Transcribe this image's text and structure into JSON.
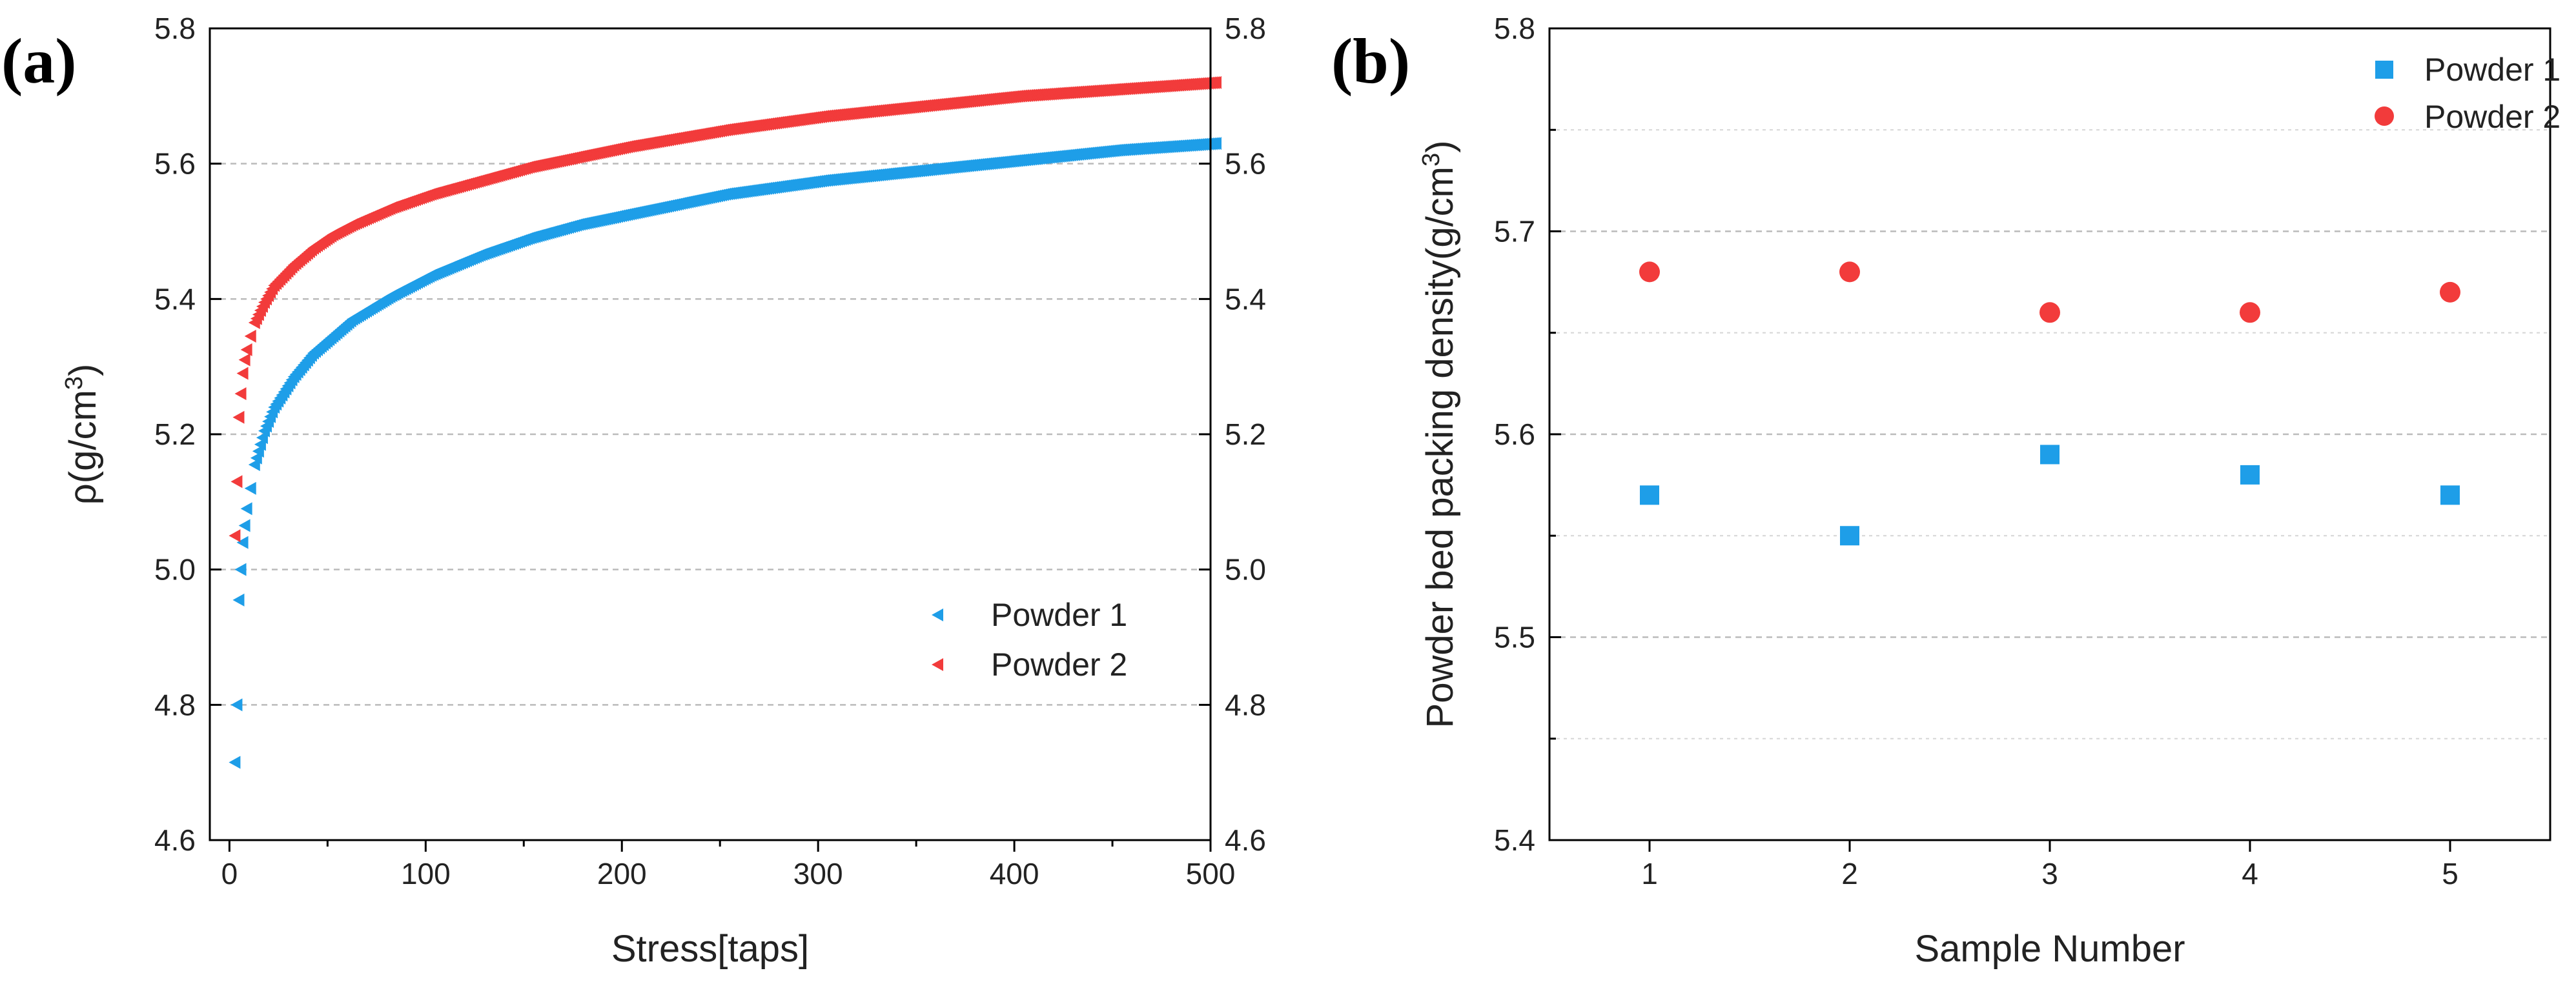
{
  "chart_data": [
    {
      "panel_label": "(a)",
      "type": "scatter",
      "xlabel": "Stress[taps]",
      "ylabel": "ρ(g/cm",
      "ylabel_sup": "3",
      "ylabel_end": ")",
      "xlim": [
        -10,
        500
      ],
      "ylim": [
        4.6,
        5.8
      ],
      "x_ticks": [
        "0",
        "100",
        "200",
        "300",
        "400",
        "500"
      ],
      "y_ticks": [
        "4.6",
        "4.8",
        "5.0",
        "5.2",
        "5.4",
        "5.6",
        "5.8"
      ],
      "right_axis_mirror": true,
      "grid": "horizontal-dashed",
      "legend_position": "bottom-right",
      "marker": "left-triangle",
      "series": [
        {
          "name": "Powder 1",
          "color": "#1e9ee8",
          "x": [
            0,
            1,
            2,
            3,
            4,
            5,
            6,
            8,
            10,
            15,
            20,
            30,
            40,
            50,
            60,
            80,
            100,
            125,
            150,
            175,
            200,
            250,
            300,
            350,
            400,
            450,
            500
          ],
          "y": [
            4.715,
            4.8,
            4.955,
            5.0,
            5.04,
            5.065,
            5.09,
            5.12,
            5.155,
            5.205,
            5.24,
            5.285,
            5.32,
            5.345,
            5.37,
            5.405,
            5.435,
            5.465,
            5.49,
            5.51,
            5.525,
            5.555,
            5.575,
            5.59,
            5.605,
            5.62,
            5.63
          ]
        },
        {
          "name": "Powder 2",
          "color": "#f23b3b",
          "x": [
            0,
            1,
            2,
            3,
            4,
            5,
            6,
            8,
            10,
            15,
            20,
            30,
            40,
            50,
            60,
            80,
            100,
            125,
            150,
            175,
            200,
            250,
            300,
            350,
            400,
            450,
            500
          ],
          "y": [
            5.05,
            5.13,
            5.225,
            5.26,
            5.29,
            5.31,
            5.325,
            5.345,
            5.365,
            5.395,
            5.42,
            5.45,
            5.475,
            5.495,
            5.51,
            5.535,
            5.555,
            5.575,
            5.595,
            5.61,
            5.625,
            5.65,
            5.67,
            5.685,
            5.7,
            5.71,
            5.72
          ]
        }
      ]
    },
    {
      "panel_label": "(b)",
      "type": "scatter",
      "xlabel": "Sample Number",
      "ylabel": "Powder bed packing density(g/cm",
      "ylabel_sup": "3",
      "ylabel_end": ")",
      "categories": [
        "1",
        "2",
        "3",
        "4",
        "5"
      ],
      "xlim": [
        0.5,
        5.5
      ],
      "ylim": [
        5.4,
        5.8
      ],
      "y_ticks": [
        "5.4",
        "5.5",
        "5.6",
        "5.7",
        "5.8"
      ],
      "grid": "horizontal-dashed",
      "legend_position": "top-right",
      "series": [
        {
          "name": "Powder 1",
          "color": "#1e9ee8",
          "marker": "square",
          "values": [
            5.57,
            5.55,
            5.59,
            5.58,
            5.57
          ]
        },
        {
          "name": "Powder 2",
          "color": "#f23b3b",
          "marker": "circle",
          "values": [
            5.68,
            5.68,
            5.66,
            5.66,
            5.67
          ]
        }
      ]
    }
  ]
}
